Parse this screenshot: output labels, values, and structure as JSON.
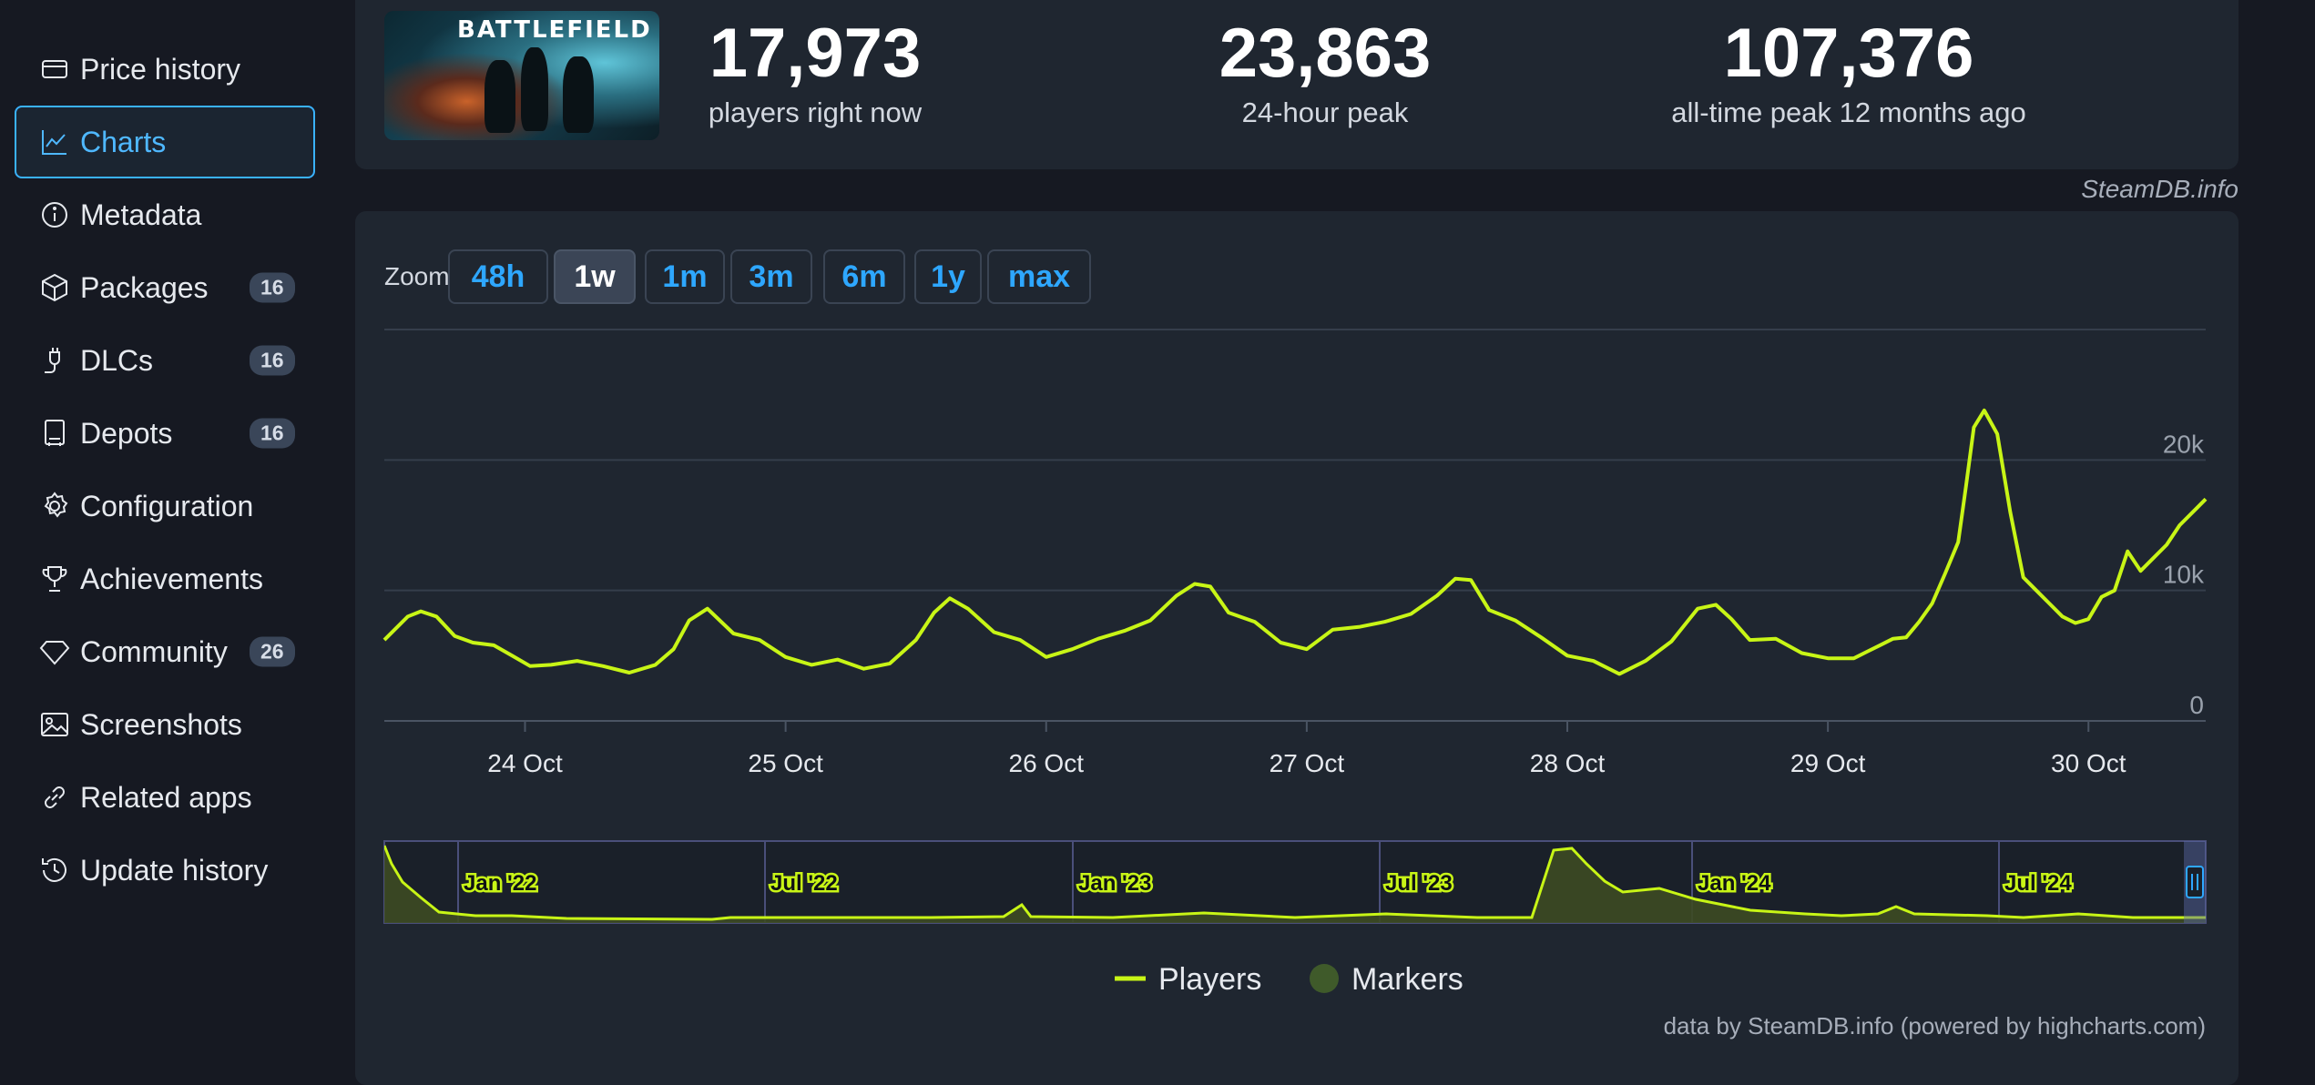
{
  "sidebar": {
    "items": [
      {
        "label": "Price history",
        "icon": "price-tag-icon",
        "active": false
      },
      {
        "label": "Charts",
        "icon": "chart-line-icon",
        "active": true
      },
      {
        "label": "Metadata",
        "icon": "info-circle-icon",
        "active": false
      },
      {
        "label": "Packages",
        "icon": "package-icon",
        "active": false,
        "badge": "16"
      },
      {
        "label": "DLCs",
        "icon": "plug-icon",
        "active": false,
        "badge": "16"
      },
      {
        "label": "Depots",
        "icon": "server-icon",
        "active": false,
        "badge": "16"
      },
      {
        "label": "Configuration",
        "icon": "gear-icon",
        "active": false
      },
      {
        "label": "Achievements",
        "icon": "trophy-icon",
        "active": false
      },
      {
        "label": "Community",
        "icon": "diamond-icon",
        "active": false,
        "badge": "26"
      },
      {
        "label": "Screenshots",
        "icon": "image-icon",
        "active": false
      },
      {
        "label": "Related apps",
        "icon": "link-icon",
        "active": false
      },
      {
        "label": "Update history",
        "icon": "history-icon",
        "active": false
      }
    ]
  },
  "header": {
    "game_logo_text": "BATTLEFIELD",
    "stats": [
      {
        "value": "17,973",
        "label": "players right now"
      },
      {
        "value": "23,863",
        "label": "24-hour peak"
      },
      {
        "value": "107,376",
        "label": "all-time peak 12 months ago"
      }
    ],
    "credit": "SteamDB.info"
  },
  "zoom": {
    "label": "Zoom",
    "buttons": [
      "48h",
      "1w",
      "1m",
      "3m",
      "6m",
      "1y",
      "max"
    ],
    "active": "1w"
  },
  "chart_data": {
    "type": "line",
    "series_name": "Players",
    "color": "#c8f516",
    "y_ticks": [
      "0",
      "10k",
      "20k"
    ],
    "ylim": [
      0,
      30000
    ],
    "x_ticks": [
      "24 Oct",
      "25 Oct",
      "26 Oct",
      "27 Oct",
      "28 Oct",
      "29 Oct",
      "30 Oct"
    ],
    "xlim": [
      23.46,
      30.45
    ],
    "x": [
      23.46,
      23.55,
      23.6,
      23.66,
      23.73,
      23.8,
      23.88,
      23.95,
      24.02,
      24.1,
      24.2,
      24.3,
      24.4,
      24.5,
      24.57,
      24.63,
      24.7,
      24.8,
      24.9,
      25.0,
      25.1,
      25.2,
      25.3,
      25.4,
      25.5,
      25.57,
      25.63,
      25.7,
      25.8,
      25.9,
      26.0,
      26.1,
      26.2,
      26.3,
      26.4,
      26.5,
      26.57,
      26.63,
      26.7,
      26.8,
      26.9,
      27.0,
      27.1,
      27.2,
      27.3,
      27.4,
      27.5,
      27.57,
      27.63,
      27.7,
      27.8,
      27.9,
      28.0,
      28.1,
      28.2,
      28.3,
      28.4,
      28.5,
      28.57,
      28.63,
      28.7,
      28.8,
      28.9,
      29.0,
      29.1,
      29.15,
      29.2,
      29.25,
      29.3,
      29.35,
      29.4,
      29.45,
      29.5,
      29.53,
      29.56,
      29.6,
      29.65,
      29.7,
      29.75,
      29.8,
      29.85,
      29.9,
      29.95,
      30.0,
      30.05,
      30.1,
      30.15,
      30.2,
      30.25,
      30.3,
      30.35,
      30.4,
      30.45
    ],
    "values": [
      6200,
      8000,
      8400,
      8000,
      6500,
      6000,
      5800,
      5000,
      4200,
      4300,
      4600,
      4200,
      3700,
      4300,
      5500,
      7700,
      8600,
      6700,
      6200,
      4900,
      4300,
      4700,
      4000,
      4400,
      6200,
      8300,
      9400,
      8600,
      6800,
      6200,
      4900,
      5500,
      6300,
      6900,
      7700,
      9600,
      10500,
      10300,
      8300,
      7600,
      6000,
      5500,
      7000,
      7200,
      7600,
      8200,
      9600,
      10900,
      10800,
      8500,
      7700,
      6400,
      5000,
      4600,
      3600,
      4600,
      6100,
      8600,
      8900,
      7800,
      6200,
      6300,
      5200,
      4800,
      4800,
      5300,
      5800,
      6300,
      6400,
      7600,
      9000,
      11300,
      13700,
      18000,
      22500,
      23800,
      22000,
      16000,
      11000,
      10000,
      9000,
      8000,
      7500,
      7800,
      9500,
      10000,
      13000,
      11500,
      12500,
      13500,
      15000,
      16000,
      17000
    ],
    "navigator": {
      "x_ticks": [
        "Jan '22",
        "Jul '22",
        "Jan '23",
        "Jul '23",
        "Jan '24",
        "Jul '24"
      ]
    },
    "legend": [
      {
        "name": "Players",
        "marker": "line",
        "color": "#c8f516"
      },
      {
        "name": "Markers",
        "marker": "circle",
        "color": "#3f5a2a"
      }
    ]
  },
  "chart_credit": "data by SteamDB.info (powered by highcharts.com)"
}
